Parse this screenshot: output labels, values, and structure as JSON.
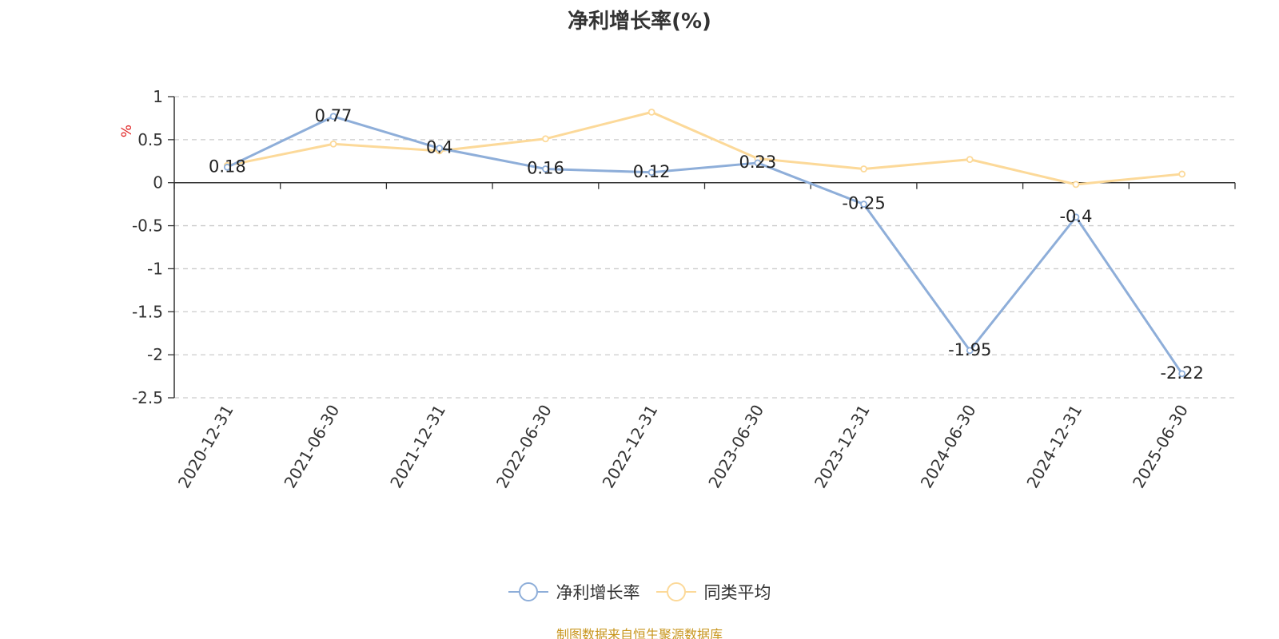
{
  "chart_data": {
    "type": "line",
    "title": "净利增长率(%)",
    "ylabel": "%",
    "xlabel": "",
    "categories": [
      "2020-12-31",
      "2021-06-30",
      "2021-12-31",
      "2022-06-30",
      "2022-12-31",
      "2023-06-30",
      "2023-12-31",
      "2024-06-30",
      "2024-12-31",
      "2025-06-30"
    ],
    "ylim": [
      -2.5,
      1
    ],
    "yticks": [
      "1",
      "0.5",
      "0",
      "-0.5",
      "-1",
      "-1.5",
      "-2",
      "-2.5"
    ],
    "grid": true,
    "legend_position": "bottom",
    "series": [
      {
        "name": "净利增长率",
        "color": "#8eaed9",
        "values": [
          0.18,
          0.77,
          0.4,
          0.16,
          0.12,
          0.23,
          -0.25,
          -1.95,
          -0.4,
          -2.22
        ],
        "labels": [
          "0.18",
          "0.77",
          "0.4",
          "0.16",
          "0.12",
          "0.23",
          "-0.25",
          "-1.95",
          "-0.4",
          "-2.22"
        ],
        "show_labels": true
      },
      {
        "name": "同类平均",
        "color": "#fcd999",
        "values": [
          0.2,
          0.45,
          0.37,
          0.51,
          0.82,
          0.28,
          0.16,
          0.27,
          -0.02,
          0.1
        ],
        "show_labels": false
      }
    ]
  },
  "source_note": "制图数据来自恒生聚源数据库"
}
